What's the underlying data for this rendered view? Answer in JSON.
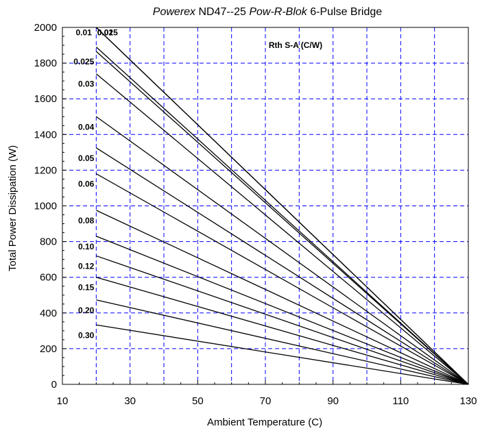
{
  "chart_data": {
    "type": "line",
    "title": {
      "brand": "Powerex",
      "part": "ND47--25",
      "product": "Pow-R-Blok",
      "suffix": "6-Pulse Bridge"
    },
    "xlabel": "Ambient Temperature (C)",
    "ylabel": "Total Power Dissipation (W)",
    "xlim": [
      10,
      130
    ],
    "ylim": [
      0,
      2000
    ],
    "x_ticks": [
      10,
      30,
      50,
      70,
      90,
      110,
      130
    ],
    "y_ticks": [
      0,
      200,
      400,
      600,
      800,
      1000,
      1200,
      1400,
      1600,
      1800,
      2000
    ],
    "x_grid": [
      20,
      30,
      40,
      50,
      60,
      70,
      80,
      90,
      100,
      110,
      120
    ],
    "y_grid": [
      200,
      400,
      600,
      800,
      1000,
      1200,
      1400,
      1600,
      1800
    ],
    "grid": true,
    "legend_title": "Rth S-A (C/W)",
    "series_x": [
      20,
      130
    ],
    "series": [
      {
        "name": "0.30",
        "values": [
          333,
          0
        ]
      },
      {
        "name": "0.20",
        "values": [
          473,
          0
        ]
      },
      {
        "name": "0.15",
        "values": [
          600,
          0
        ]
      },
      {
        "name": "0.12",
        "values": [
          720,
          0
        ]
      },
      {
        "name": "0.10",
        "values": [
          830,
          0
        ]
      },
      {
        "name": "0.08",
        "values": [
          975,
          0
        ]
      },
      {
        "name": "0.06",
        "values": [
          1180,
          0
        ]
      },
      {
        "name": "0.05",
        "values": [
          1325,
          0
        ]
      },
      {
        "name": "0.04",
        "values": [
          1500,
          0
        ]
      },
      {
        "name": "0.03",
        "values": [
          1740,
          0
        ]
      },
      {
        "name": "0.025",
        "values": [
          1865,
          0
        ]
      },
      {
        "name": "0.02",
        "values": [
          2000,
          0
        ]
      },
      {
        "name": "0.015",
        "values": [
          2000,
          0
        ]
      },
      {
        "name": "0.01",
        "values": [
          1890,
          0
        ]
      }
    ]
  }
}
